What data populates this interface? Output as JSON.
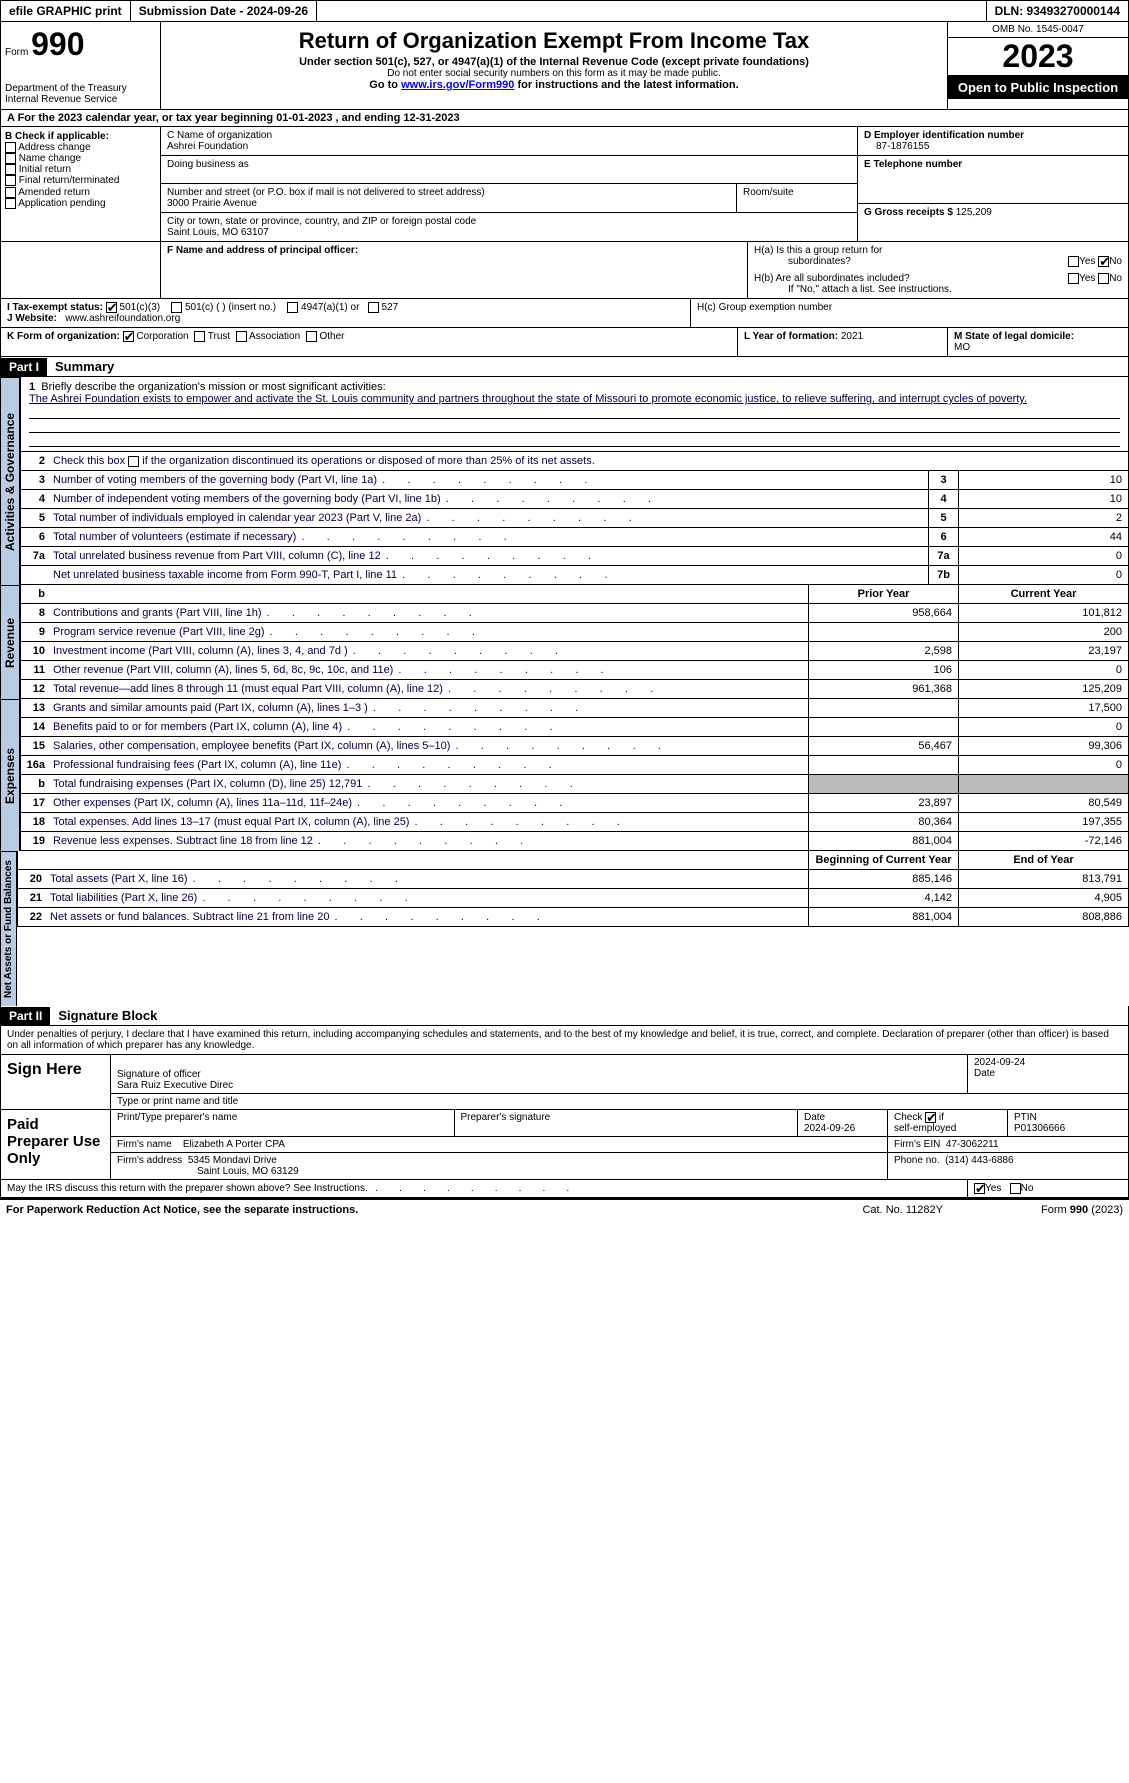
{
  "topbar": {
    "efile_label": "efile GRAPHIC print",
    "submission_label": "Submission Date - 2024-09-26",
    "dln_label": "DLN: 93493270000144"
  },
  "header": {
    "form_word": "Form",
    "form_number": "990",
    "dept": "Department of the Treasury Internal Revenue Service",
    "title": "Return of Organization Exempt From Income Tax",
    "sub1": "Under section 501(c), 527, or 4947(a)(1) of the Internal Revenue Code (except private foundations)",
    "sub2": "Do not enter social security numbers on this form as it may be made public.",
    "sub3_pre": "Go to ",
    "sub3_link": "www.irs.gov/Form990",
    "sub3_post": " for instructions and the latest information.",
    "omb": "OMB No. 1545-0047",
    "year": "2023",
    "open": "Open to Public Inspection"
  },
  "line_a": "A   For the 2023 calendar year, or tax year beginning 01-01-2023    , and ending 12-31-2023",
  "box_b": {
    "title": "B Check if applicable:",
    "items": [
      "Address change",
      "Name change",
      "Initial return",
      "Final return/terminated",
      "Amended return",
      "Application pending"
    ]
  },
  "box_c": {
    "name_label": "C Name of organization",
    "name": "Ashrei Foundation",
    "dba_label": "Doing business as",
    "addr_label": "Number and street (or P.O. box if mail is not delivered to street address)",
    "addr": "3000 Prairie Avenue",
    "room_label": "Room/suite",
    "city_label": "City or town, state or province, country, and ZIP or foreign postal code",
    "city": "Saint Louis, MO  63107"
  },
  "box_d": {
    "label": "D Employer identification number",
    "value": "87-1876155",
    "e_label": "E Telephone number",
    "g_label": "G Gross receipts $ ",
    "g_value": "125,209"
  },
  "box_f": {
    "label": "F  Name and address of principal officer:"
  },
  "box_h": {
    "a1": "H(a)  Is this a group return for",
    "a2": "subordinates?",
    "b1": "H(b)  Are all subordinates included?",
    "b2": "If \"No,\" attach a list. See instructions.",
    "c": "H(c)  Group exemption number",
    "yes": "Yes",
    "no": "No"
  },
  "box_i": {
    "label": "I     Tax-exempt status:",
    "o1": "501(c)(3)",
    "o2": "501(c) (  ) (insert no.)",
    "o3": "4947(a)(1) or",
    "o4": "527"
  },
  "box_j": {
    "label": "J    Website:",
    "value": "www.ashreifoundation.org"
  },
  "box_k": {
    "label": "K Form of organization:",
    "o1": "Corporation",
    "o2": "Trust",
    "o3": "Association",
    "o4": "Other"
  },
  "box_l": {
    "label": "L Year of formation: ",
    "value": "2021"
  },
  "box_m": {
    "label": "M State of legal domicile:",
    "value": "MO"
  },
  "part1": {
    "label": "Part I",
    "title": "Summary"
  },
  "mission": {
    "num": "1",
    "label": "Briefly describe the organization's mission or most significant activities:",
    "text": "The Ashrei Foundation exists to empower and activate the St. Louis community and partners throughout the state of Missouri to promote economic justice, to relieve suffering, and interrupt cycles of poverty."
  },
  "line2": {
    "num": "2",
    "text": "Check this box       if the organization discontinued its operations or disposed of more than 25% of its net assets."
  },
  "vtabs": {
    "gov": "Activities & Governance",
    "rev": "Revenue",
    "exp": "Expenses",
    "net": "Net Assets or Fund Balances"
  },
  "gov_rows": [
    {
      "n": "3",
      "t": "Number of voting members of the governing body (Part VI, line 1a)",
      "b": "3",
      "v": "10"
    },
    {
      "n": "4",
      "t": "Number of independent voting members of the governing body (Part VI, line 1b)",
      "b": "4",
      "v": "10"
    },
    {
      "n": "5",
      "t": "Total number of individuals employed in calendar year 2023 (Part V, line 2a)",
      "b": "5",
      "v": "2"
    },
    {
      "n": "6",
      "t": "Total number of volunteers (estimate if necessary)",
      "b": "6",
      "v": "44"
    },
    {
      "n": "7a",
      "t": "Total unrelated business revenue from Part VIII, column (C), line 12",
      "b": "7a",
      "v": "0"
    },
    {
      "n": "",
      "t": "Net unrelated business taxable income from Form 990-T, Part I, line 11",
      "b": "7b",
      "v": "0"
    }
  ],
  "year_headers": {
    "b": "b",
    "prior": "Prior Year",
    "current": "Current Year"
  },
  "rev_rows": [
    {
      "n": "8",
      "t": "Contributions and grants (Part VIII, line 1h)",
      "p": "958,664",
      "c": "101,812"
    },
    {
      "n": "9",
      "t": "Program service revenue (Part VIII, line 2g)",
      "p": "",
      "c": "200"
    },
    {
      "n": "10",
      "t": "Investment income (Part VIII, column (A), lines 3, 4, and 7d )",
      "p": "2,598",
      "c": "23,197"
    },
    {
      "n": "11",
      "t": "Other revenue (Part VIII, column (A), lines 5, 6d, 8c, 9c, 10c, and 11e)",
      "p": "106",
      "c": "0"
    },
    {
      "n": "12",
      "t": "Total revenue—add lines 8 through 11 (must equal Part VIII, column (A), line 12)",
      "p": "961,368",
      "c": "125,209"
    }
  ],
  "exp_rows": [
    {
      "n": "13",
      "t": "Grants and similar amounts paid (Part IX, column (A), lines 1–3 )",
      "p": "",
      "c": "17,500"
    },
    {
      "n": "14",
      "t": "Benefits paid to or for members (Part IX, column (A), line 4)",
      "p": "",
      "c": "0"
    },
    {
      "n": "15",
      "t": "Salaries, other compensation, employee benefits (Part IX, column (A), lines 5–10)",
      "p": "56,467",
      "c": "99,306"
    },
    {
      "n": "16a",
      "t": "Professional fundraising fees (Part IX, column (A), line 11e)",
      "p": "",
      "c": "0"
    },
    {
      "n": "b",
      "t": "Total fundraising expenses (Part IX, column (D), line 25) 12,791",
      "p": "shade",
      "c": "shade"
    },
    {
      "n": "17",
      "t": "Other expenses (Part IX, column (A), lines 11a–11d, 11f–24e)",
      "p": "23,897",
      "c": "80,549"
    },
    {
      "n": "18",
      "t": "Total expenses. Add lines 13–17 (must equal Part IX, column (A), line 25)",
      "p": "80,364",
      "c": "197,355"
    },
    {
      "n": "19",
      "t": "Revenue less expenses. Subtract line 18 from line 12",
      "p": "881,004",
      "c": "-72,146"
    }
  ],
  "net_headers": {
    "begin": "Beginning of Current Year",
    "end": "End of Year"
  },
  "net_rows": [
    {
      "n": "20",
      "t": "Total assets (Part X, line 16)",
      "p": "885,146",
      "c": "813,791"
    },
    {
      "n": "21",
      "t": "Total liabilities (Part X, line 26)",
      "p": "4,142",
      "c": "4,905"
    },
    {
      "n": "22",
      "t": "Net assets or fund balances. Subtract line 21 from line 20",
      "p": "881,004",
      "c": "808,886"
    }
  ],
  "part2": {
    "label": "Part II",
    "title": "Signature Block"
  },
  "penalties": "Under penalties of perjury, I declare that I have examined this return, including accompanying schedules and statements, and to the best of my knowledge and belief, it is true, correct, and complete. Declaration of preparer (other than officer) is based on all information of which preparer has any knowledge.",
  "sign": {
    "label": "Sign Here",
    "sig_label": "Signature of officer",
    "name": "Sara Ruiz  Executive Direc",
    "name_label": "Type or print name and title",
    "date": "2024-09-24"
  },
  "paid": {
    "label": "Paid Preparer Use Only",
    "c1": "Print/Type preparer's name",
    "c2": "Preparer's signature",
    "c3": "Date",
    "c3v": "2024-09-26",
    "c4": "Check        if self-employed",
    "c5": "PTIN",
    "c5v": "P01306666",
    "firm_label": "Firm's name",
    "firm": "Elizabeth A Porter CPA",
    "ein_label": "Firm's EIN",
    "ein": "47-3062211",
    "addr_label": "Firm's address",
    "addr1": "5345 Mondavi Drive",
    "addr2": "Saint Louis, MO  63129",
    "phone_label": "Phone no.",
    "phone": "(314) 443-6886"
  },
  "discuss": {
    "text": "May the IRS discuss this return with the preparer shown above? See Instructions.",
    "yes": "Yes",
    "no": "No"
  },
  "footer": {
    "left": "For Paperwork Reduction Act Notice, see the separate instructions.",
    "mid": "Cat. No. 11282Y",
    "right": "Form 990 (2023)"
  }
}
